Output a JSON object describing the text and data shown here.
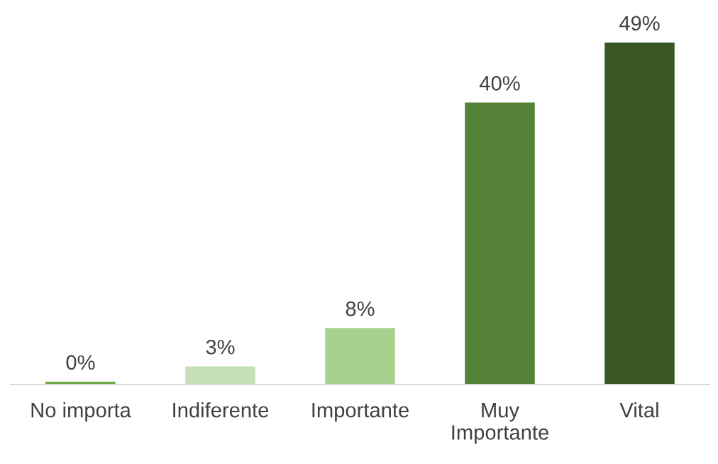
{
  "chart_data": {
    "type": "bar",
    "categories": [
      "No importa",
      "Indiferente",
      "Importante",
      "Muy\nImportante",
      "Vital"
    ],
    "values": [
      0.4,
      2.6,
      8.1,
      40.4,
      49
    ],
    "value_labels": [
      "0%",
      "3%",
      "8%",
      "40%",
      "49%"
    ],
    "colors": [
      "#6aa843",
      "#c5e0b4",
      "#a9d18e",
      "#538135",
      "#385723"
    ],
    "grid": false,
    "legend": false
  }
}
